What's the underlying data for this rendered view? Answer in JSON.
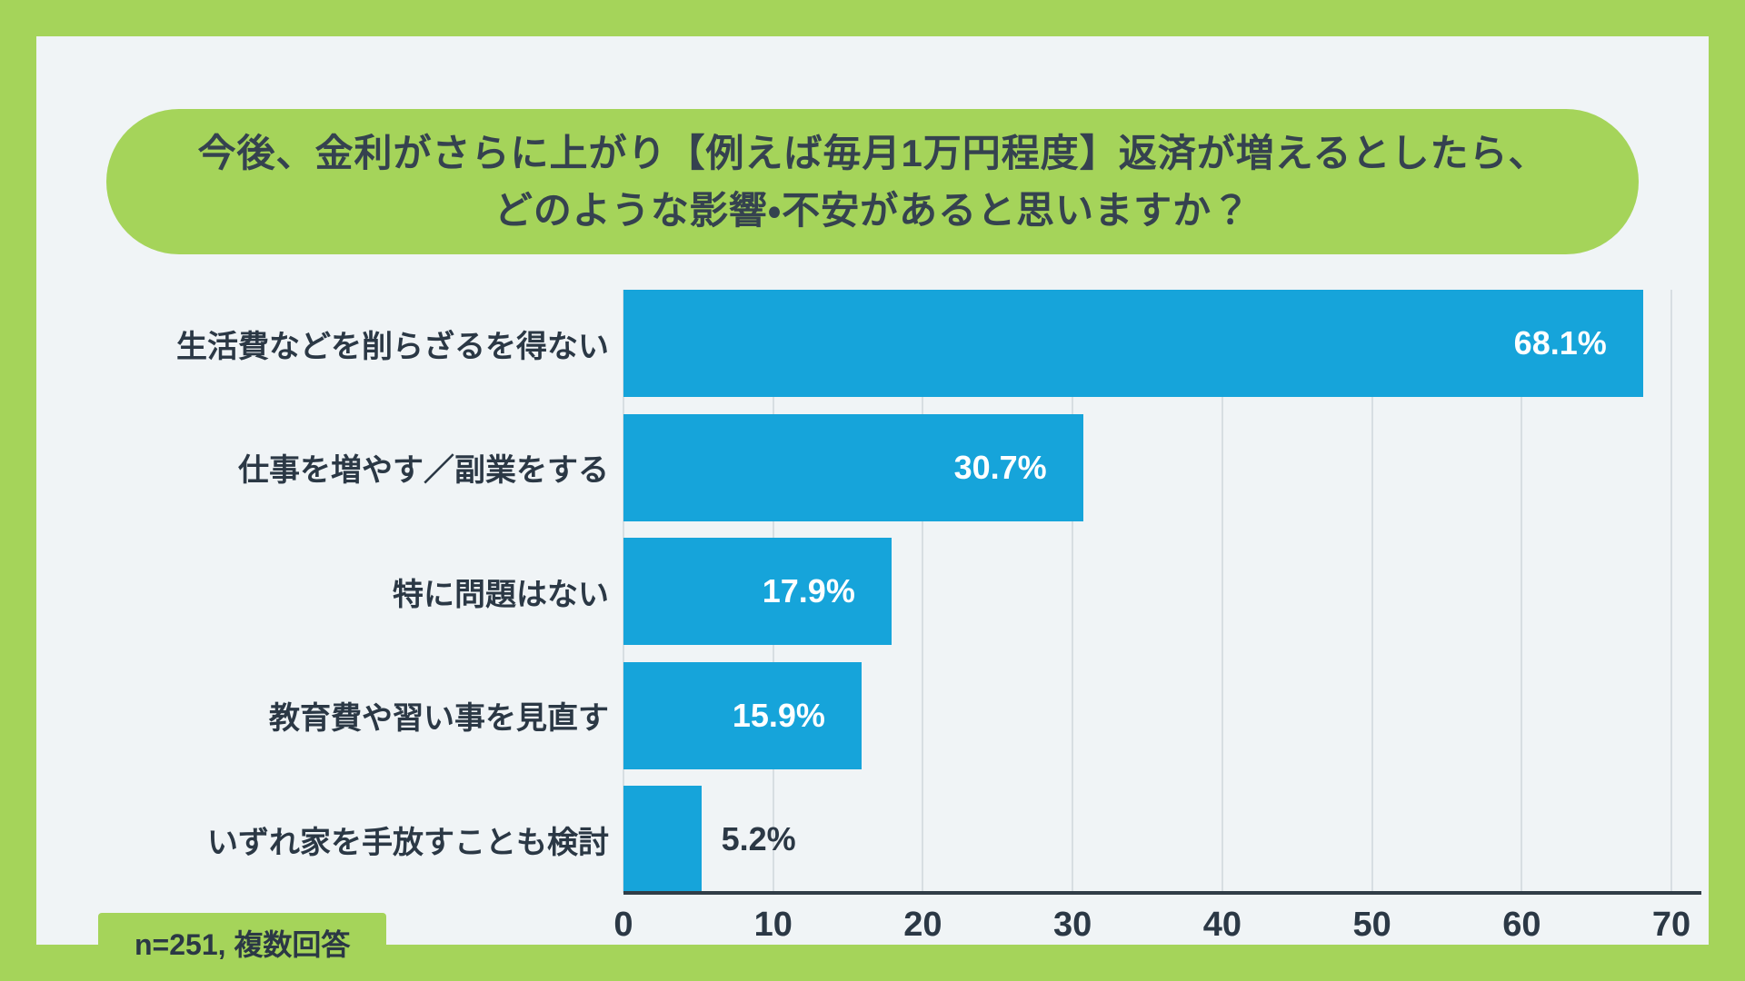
{
  "title": {
    "line1": "今後、金利がさらに上がり【例えば毎月1万円程度】返済が増えるとしたら、",
    "line2": "どのような影響・不安があると思いますか？"
  },
  "note": "n=251, 複数回答",
  "chart_data": {
    "type": "bar",
    "orientation": "horizontal",
    "title": "今後、金利がさらに上がり【例えば毎月1万円程度】返済が増えるとしたら、どのような影響・不安があると思いますか？",
    "categories": [
      "生活費などを削らざるを得ない",
      "仕事を増やす／副業をする",
      "特に問題はない",
      "教育費や習い事を見直す",
      "いずれ家を手放すことも検討"
    ],
    "values": [
      68.1,
      30.7,
      17.9,
      15.9,
      5.2
    ],
    "value_labels": [
      "68.1%",
      "30.7%",
      "17.9%",
      "15.9%",
      "5.2%"
    ],
    "x_ticks": [
      0,
      10,
      20,
      30,
      40,
      50,
      60,
      70
    ],
    "xlim": [
      0,
      72
    ],
    "grid": true,
    "legend": false,
    "annotation": "n=251, 複数回答",
    "inside_label_min": 10,
    "colors": {
      "bar": "#16a4da",
      "frame_green": "#a5d45a",
      "panel_bg": "#f0f4f6",
      "text_dark": "#2b3845",
      "value_text_inside": "#ffffff",
      "gridline": "#d7dee2",
      "axis_line": "#313d47"
    }
  }
}
